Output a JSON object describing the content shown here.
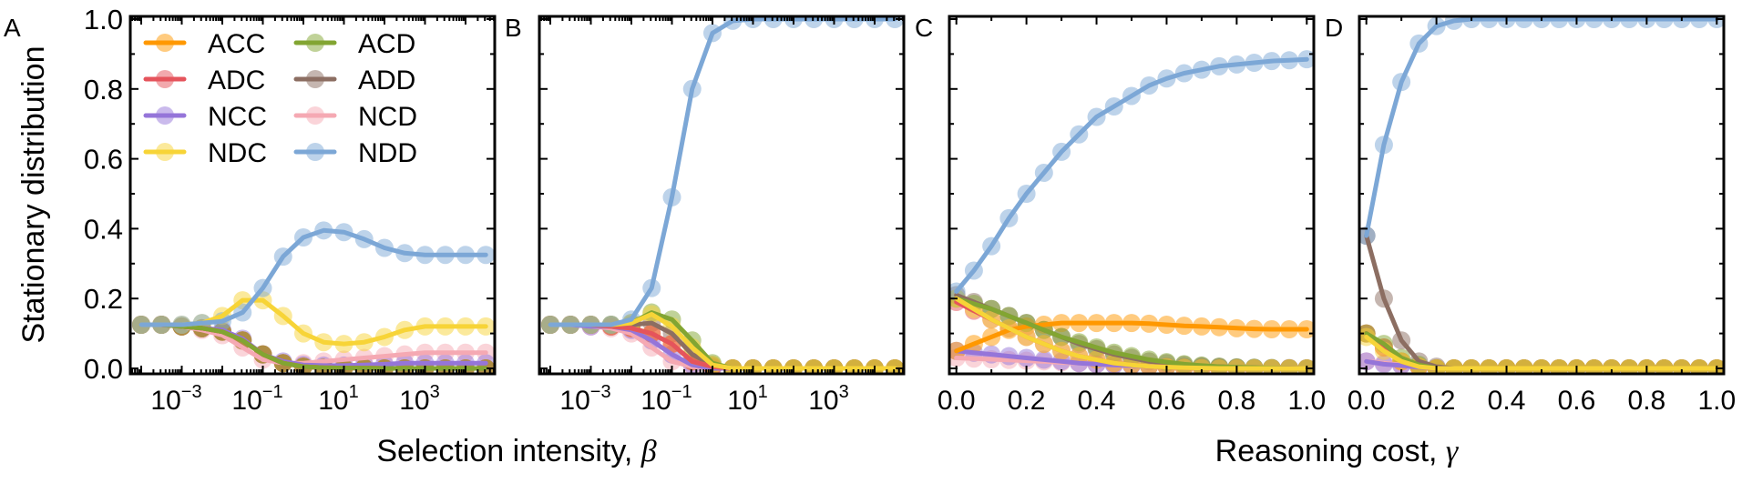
{
  "ylabel": "Stationary distribution",
  "xlabel_left": "Selection intensity, ",
  "xlabel_left_symbol": "β",
  "xlabel_right": "Reasoning cost, ",
  "xlabel_right_symbol": "γ",
  "colors": {
    "ACC": "#ff9800",
    "ADC": "#e5545c",
    "NCC": "#9575d9",
    "NDC": "#f7d437",
    "ACD": "#82a532",
    "ADD": "#8c6e62",
    "NCD": "#f5a9b3",
    "NDD": "#7ca7d6"
  },
  "legend": {
    "placement": "top-left of panel A",
    "entries": [
      "ACC",
      "ACD",
      "ADC",
      "ADD",
      "NCC",
      "NCD",
      "NDC",
      "NDD"
    ]
  },
  "chart_data": [
    {
      "panel": "A",
      "type": "line",
      "x_scale": "log10",
      "x_log10_range": [
        -4.27,
        4.72
      ],
      "ylim": [
        0,
        1
      ],
      "y_ticks": [
        "0.0",
        "0.2",
        "0.4",
        "0.6",
        "0.8",
        "1.0"
      ],
      "x_ticks": [
        {
          "base": "10",
          "exp": "−3",
          "v": -3
        },
        {
          "base": "10",
          "exp": "−1",
          "v": -1
        },
        {
          "base": "10",
          "exp": "1",
          "v": 1
        },
        {
          "base": "10",
          "exp": "3",
          "v": 3
        }
      ],
      "x_log10": [
        -4,
        -3.5,
        -3,
        -2.5,
        -2,
        -1.5,
        -1,
        -0.5,
        0,
        0.5,
        1,
        1.5,
        2,
        2.5,
        3,
        3.5,
        4,
        4.5
      ],
      "series": [
        {
          "name": "ACC",
          "values": [
            0.125,
            0.125,
            0.12,
            0.115,
            0.105,
            0.08,
            0.04,
            0.015,
            0.005,
            0.002,
            0.001,
            0.001,
            0,
            0,
            0,
            0,
            0,
            0
          ]
        },
        {
          "name": "ADC",
          "values": [
            0.125,
            0.125,
            0.12,
            0.115,
            0.105,
            0.08,
            0.04,
            0.015,
            0.005,
            0.002,
            0.001,
            0.001,
            0,
            0,
            0,
            0,
            0,
            0
          ]
        },
        {
          "name": "ACD",
          "values": [
            0.125,
            0.125,
            0.12,
            0.115,
            0.105,
            0.08,
            0.04,
            0.015,
            0.005,
            0.002,
            0.001,
            0.001,
            0,
            0,
            0,
            0,
            0,
            0
          ]
        },
        {
          "name": "ADD",
          "values": [
            0.125,
            0.125,
            0.12,
            0.115,
            0.105,
            0.08,
            0.04,
            0.015,
            0.005,
            0.002,
            0.001,
            0.001,
            0,
            0,
            0,
            0,
            0,
            0
          ]
        },
        {
          "name": "NCC",
          "values": [
            0.125,
            0.125,
            0.12,
            0.115,
            0.11,
            0.085,
            0.04,
            0.02,
            0.01,
            0.008,
            0.008,
            0.01,
            0.012,
            0.015,
            0.015,
            0.015,
            0.015,
            0.015
          ]
        },
        {
          "name": "NCD",
          "values": [
            0.125,
            0.125,
            0.12,
            0.11,
            0.095,
            0.06,
            0.025,
            0.015,
            0.015,
            0.02,
            0.025,
            0.03,
            0.035,
            0.04,
            0.045,
            0.045,
            0.045,
            0.045
          ]
        },
        {
          "name": "NDC",
          "values": [
            0.125,
            0.125,
            0.125,
            0.13,
            0.15,
            0.195,
            0.195,
            0.15,
            0.1,
            0.075,
            0.07,
            0.075,
            0.09,
            0.11,
            0.12,
            0.12,
            0.12,
            0.12
          ]
        },
        {
          "name": "NDD",
          "values": [
            0.125,
            0.125,
            0.125,
            0.13,
            0.135,
            0.16,
            0.23,
            0.32,
            0.375,
            0.395,
            0.39,
            0.37,
            0.345,
            0.33,
            0.325,
            0.325,
            0.325,
            0.325
          ]
        }
      ]
    },
    {
      "panel": "B",
      "type": "line",
      "x_scale": "log10",
      "x_log10_range": [
        -4.27,
        4.72
      ],
      "ylim": [
        0,
        1
      ],
      "x_ticks": [
        {
          "base": "10",
          "exp": "−3",
          "v": -3
        },
        {
          "base": "10",
          "exp": "−1",
          "v": -1
        },
        {
          "base": "10",
          "exp": "1",
          "v": 1
        },
        {
          "base": "10",
          "exp": "3",
          "v": 3
        }
      ],
      "x_log10": [
        -4,
        -3.5,
        -3,
        -2.5,
        -2,
        -1.5,
        -1,
        -0.5,
        0,
        0.5,
        1,
        1.5,
        2,
        2.5,
        3,
        3.5,
        4,
        4.5
      ],
      "series": [
        {
          "name": "ACC",
          "values": [
            0.125,
            0.125,
            0.125,
            0.12,
            0.115,
            0.1,
            0.07,
            0.02,
            0.005,
            0,
            0,
            0,
            0,
            0,
            0,
            0,
            0,
            0
          ]
        },
        {
          "name": "ADC",
          "values": [
            0.125,
            0.125,
            0.125,
            0.12,
            0.115,
            0.1,
            0.07,
            0.02,
            0.005,
            0,
            0,
            0,
            0,
            0,
            0,
            0,
            0,
            0
          ]
        },
        {
          "name": "ACD",
          "values": [
            0.125,
            0.125,
            0.125,
            0.125,
            0.13,
            0.16,
            0.14,
            0.08,
            0.015,
            0,
            0,
            0,
            0,
            0,
            0,
            0,
            0,
            0
          ]
        },
        {
          "name": "ADD",
          "values": [
            0.125,
            0.125,
            0.125,
            0.125,
            0.125,
            0.13,
            0.1,
            0.04,
            0.01,
            0,
            0,
            0,
            0,
            0,
            0,
            0,
            0,
            0
          ]
        },
        {
          "name": "NCC",
          "values": [
            0.125,
            0.125,
            0.12,
            0.12,
            0.11,
            0.08,
            0.04,
            0.01,
            0,
            0,
            0,
            0,
            0,
            0,
            0,
            0,
            0,
            0
          ]
        },
        {
          "name": "NCD",
          "values": [
            0.125,
            0.125,
            0.12,
            0.115,
            0.1,
            0.06,
            0.02,
            0.005,
            0,
            0,
            0,
            0,
            0,
            0,
            0,
            0,
            0,
            0
          ]
        },
        {
          "name": "NDC",
          "values": [
            0.125,
            0.125,
            0.125,
            0.125,
            0.13,
            0.155,
            0.12,
            0.06,
            0.01,
            0,
            0,
            0,
            0,
            0,
            0,
            0,
            0,
            0
          ]
        },
        {
          "name": "NDD",
          "values": [
            0.125,
            0.125,
            0.125,
            0.125,
            0.14,
            0.23,
            0.49,
            0.8,
            0.96,
            0.995,
            1,
            1,
            1,
            1,
            1,
            1,
            1,
            1
          ]
        }
      ]
    },
    {
      "panel": "C",
      "type": "line",
      "x_scale": "linear",
      "xlim": [
        -0.02,
        1.02
      ],
      "ylim": [
        0,
        1
      ],
      "x_ticks": [
        "0.0",
        "0.2",
        "0.4",
        "0.6",
        "0.8",
        "1.0"
      ],
      "x": [
        0,
        0.05,
        0.1,
        0.15,
        0.2,
        0.25,
        0.3,
        0.35,
        0.4,
        0.45,
        0.5,
        0.55,
        0.6,
        0.65,
        0.7,
        0.75,
        0.8,
        0.85,
        0.9,
        0.95,
        1
      ],
      "series": [
        {
          "name": "ACC",
          "values": [
            0.05,
            0.07,
            0.09,
            0.11,
            0.12,
            0.125,
            0.13,
            0.13,
            0.13,
            0.13,
            0.13,
            0.128,
            0.125,
            0.122,
            0.12,
            0.118,
            0.115,
            0.113,
            0.112,
            0.112,
            0.112
          ]
        },
        {
          "name": "ADC",
          "values": [
            0.19,
            0.165,
            0.14,
            0.115,
            0.09,
            0.07,
            0.05,
            0.035,
            0.025,
            0.015,
            0.01,
            0.006,
            0.004,
            0.002,
            0.001,
            0,
            0,
            0,
            0,
            0,
            0
          ]
        },
        {
          "name": "ACD",
          "values": [
            0.2,
            0.185,
            0.17,
            0.15,
            0.13,
            0.11,
            0.09,
            0.075,
            0.06,
            0.045,
            0.035,
            0.025,
            0.018,
            0.012,
            0.008,
            0.005,
            0.003,
            0.002,
            0.001,
            0,
            0
          ]
        },
        {
          "name": "ADD",
          "values": [
            0.21,
            0.19,
            0.17,
            0.15,
            0.13,
            0.11,
            0.09,
            0.07,
            0.055,
            0.04,
            0.03,
            0.02,
            0.015,
            0.01,
            0.007,
            0.005,
            0.003,
            0.002,
            0.001,
            0.001,
            0
          ]
        },
        {
          "name": "NCC",
          "values": [
            0.05,
            0.045,
            0.04,
            0.035,
            0.03,
            0.025,
            0.02,
            0.015,
            0.012,
            0.01,
            0.008,
            0.006,
            0.005,
            0.004,
            0.003,
            0.002,
            0.001,
            0,
            0,
            0,
            0
          ]
        },
        {
          "name": "NCD",
          "values": [
            0.03,
            0.028,
            0.026,
            0.024,
            0.022,
            0.02,
            0.017,
            0.015,
            0.012,
            0.01,
            0.008,
            0.006,
            0.005,
            0.004,
            0.003,
            0.002,
            0.001,
            0,
            0,
            0,
            0
          ]
        },
        {
          "name": "NDC",
          "values": [
            0.2,
            0.17,
            0.14,
            0.115,
            0.09,
            0.07,
            0.05,
            0.035,
            0.025,
            0.015,
            0.01,
            0.006,
            0.004,
            0.002,
            0.001,
            0,
            0,
            0,
            0,
            0,
            0
          ]
        },
        {
          "name": "NDD",
          "values": [
            0.22,
            0.28,
            0.35,
            0.43,
            0.5,
            0.56,
            0.62,
            0.67,
            0.72,
            0.75,
            0.78,
            0.81,
            0.83,
            0.845,
            0.855,
            0.865,
            0.87,
            0.875,
            0.88,
            0.882,
            0.885
          ]
        }
      ]
    },
    {
      "panel": "D",
      "type": "line",
      "x_scale": "linear",
      "xlim": [
        -0.02,
        1.02
      ],
      "ylim": [
        0,
        1
      ],
      "x_ticks": [
        "0.0",
        "0.2",
        "0.4",
        "0.6",
        "0.8",
        "1.0"
      ],
      "x": [
        0,
        0.05,
        0.1,
        0.15,
        0.2,
        0.25,
        0.3,
        0.35,
        0.4,
        0.45,
        0.5,
        0.55,
        0.6,
        0.65,
        0.7,
        0.75,
        0.8,
        0.85,
        0.9,
        0.95,
        1
      ],
      "series": [
        {
          "name": "ACC",
          "values": [
            0.1,
            0.06,
            0.02,
            0.005,
            0,
            0,
            0,
            0,
            0,
            0,
            0,
            0,
            0,
            0,
            0,
            0,
            0,
            0,
            0,
            0,
            0
          ]
        },
        {
          "name": "ADC",
          "values": [
            0.1,
            0.06,
            0.02,
            0.005,
            0,
            0,
            0,
            0,
            0,
            0,
            0,
            0,
            0,
            0,
            0,
            0,
            0,
            0,
            0,
            0,
            0
          ]
        },
        {
          "name": "ACD",
          "values": [
            0.1,
            0.07,
            0.03,
            0.01,
            0,
            0,
            0,
            0,
            0,
            0,
            0,
            0,
            0,
            0,
            0,
            0,
            0,
            0,
            0,
            0,
            0
          ]
        },
        {
          "name": "ADD",
          "values": [
            0.38,
            0.2,
            0.08,
            0.02,
            0.005,
            0,
            0,
            0,
            0,
            0,
            0,
            0,
            0,
            0,
            0,
            0,
            0,
            0,
            0,
            0,
            0
          ]
        },
        {
          "name": "NCC",
          "values": [
            0.02,
            0.012,
            0.008,
            0.003,
            0,
            0,
            0,
            0,
            0,
            0,
            0,
            0,
            0,
            0,
            0,
            0,
            0,
            0,
            0,
            0,
            0
          ]
        },
        {
          "name": "NCD",
          "values": [
            0.02,
            0.015,
            0.01,
            0.005,
            0,
            0,
            0,
            0,
            0,
            0,
            0,
            0,
            0,
            0,
            0,
            0,
            0,
            0,
            0,
            0,
            0
          ]
        },
        {
          "name": "NDC",
          "values": [
            0.09,
            0.05,
            0.02,
            0.005,
            0,
            0,
            0,
            0,
            0,
            0,
            0,
            0,
            0,
            0,
            0,
            0,
            0,
            0,
            0,
            0,
            0
          ]
        },
        {
          "name": "NDD",
          "values": [
            0.38,
            0.64,
            0.82,
            0.93,
            0.98,
            0.995,
            1,
            1,
            1,
            1,
            1,
            1,
            1,
            1,
            1,
            1,
            1,
            1,
            1,
            1,
            1
          ]
        }
      ]
    }
  ]
}
